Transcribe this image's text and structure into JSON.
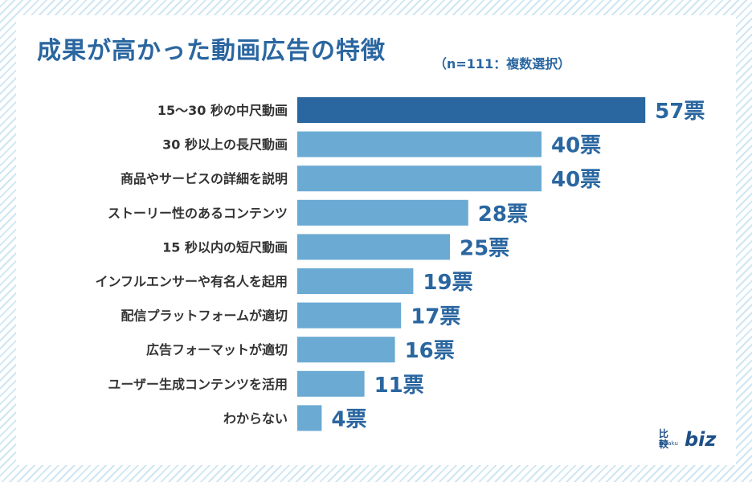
{
  "chart_data": {
    "type": "bar",
    "orientation": "horizontal",
    "title": "成果が高かった動画広告の特徴",
    "subtitle": "（n=111：複数選択）",
    "value_suffix": "票",
    "categories": [
      "15〜30 秒の中尺動画",
      "30 秒以上の長尺動画",
      "商品やサービスの詳細を説明",
      "ストーリー性のあるコンテンツ",
      "15 秒以内の短尺動画",
      "インフルエンサーや有名人を起用",
      "配信プラットフォームが適切",
      "広告フォーマットが適切",
      "ユーザー生成コンテンツを活用",
      "わからない"
    ],
    "values": [
      57,
      40,
      40,
      28,
      25,
      19,
      17,
      16,
      11,
      4
    ],
    "data_labels": [
      "57票",
      "40票",
      "40票",
      "28票",
      "25票",
      "19票",
      "17票",
      "16票",
      "11票",
      "4票"
    ],
    "colors": {
      "highlight_bar": "#2a66a0",
      "bar": "#6aaad3",
      "value_label": "#2a66a0",
      "category_label": "#333333"
    }
  },
  "logo": {
    "kanji": "比較",
    "roman": "hikaku",
    "mark": "biz"
  }
}
